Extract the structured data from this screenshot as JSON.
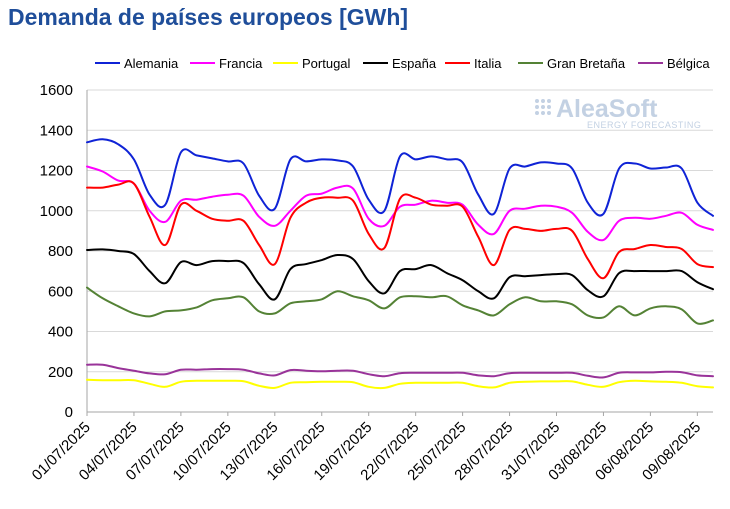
{
  "chart_data": {
    "type": "line",
    "title": "Demanda de países europeos [GWh]",
    "xlabel": "",
    "ylabel": "",
    "ylim": [
      0,
      1600
    ],
    "yticks": [
      0,
      200,
      400,
      600,
      800,
      1000,
      1200,
      1400,
      1600
    ],
    "grid": true,
    "legend_position": "top",
    "x": [
      "01/07/2025",
      "02/07/2025",
      "03/07/2025",
      "04/07/2025",
      "05/07/2025",
      "06/07/2025",
      "07/07/2025",
      "08/07/2025",
      "09/07/2025",
      "10/07/2025",
      "11/07/2025",
      "12/07/2025",
      "13/07/2025",
      "14/07/2025",
      "15/07/2025",
      "16/07/2025",
      "17/07/2025",
      "18/07/2025",
      "19/07/2025",
      "20/07/2025",
      "21/07/2025",
      "22/07/2025",
      "23/07/2025",
      "24/07/2025",
      "25/07/2025",
      "26/07/2025",
      "27/07/2025",
      "28/07/2025",
      "29/07/2025",
      "30/07/2025",
      "31/07/2025",
      "01/08/2025",
      "02/08/2025",
      "03/08/2025",
      "04/08/2025",
      "05/08/2025",
      "06/08/2025",
      "07/08/2025",
      "08/08/2025",
      "09/08/2025",
      "10/08/2025"
    ],
    "xtick_labels": [
      "01/07/2025",
      "04/07/2025",
      "07/07/2025",
      "10/07/2025",
      "13/07/2025",
      "16/07/2025",
      "19/07/2025",
      "22/07/2025",
      "25/07/2025",
      "28/07/2025",
      "31/07/2025",
      "03/08/2025",
      "06/08/2025",
      "09/08/2025"
    ],
    "series": [
      {
        "name": "Alemania",
        "color": "#0f23d6",
        "values": [
          1340,
          1355,
          1330,
          1255,
          1080,
          1030,
          1290,
          1275,
          1260,
          1245,
          1235,
          1075,
          1010,
          1255,
          1245,
          1255,
          1250,
          1220,
          1055,
          1000,
          1270,
          1255,
          1270,
          1255,
          1240,
          1080,
          985,
          1210,
          1220,
          1240,
          1235,
          1210,
          1040,
          985,
          1210,
          1235,
          1210,
          1215,
          1210,
          1040,
          975
        ]
      },
      {
        "name": "Francia",
        "color": "#ff00ff",
        "values": [
          1220,
          1195,
          1150,
          1135,
          1000,
          945,
          1050,
          1055,
          1070,
          1080,
          1075,
          970,
          925,
          1000,
          1075,
          1085,
          1115,
          1110,
          960,
          925,
          1020,
          1030,
          1050,
          1040,
          1030,
          930,
          885,
          1000,
          1010,
          1025,
          1020,
          990,
          895,
          855,
          950,
          965,
          960,
          975,
          990,
          930,
          905
        ]
      },
      {
        "name": "Portugal",
        "color": "#ffff00",
        "values": [
          160,
          158,
          158,
          158,
          140,
          125,
          150,
          155,
          155,
          155,
          153,
          130,
          120,
          145,
          148,
          150,
          150,
          148,
          125,
          120,
          140,
          145,
          145,
          145,
          145,
          128,
          122,
          145,
          150,
          152,
          152,
          152,
          135,
          125,
          148,
          155,
          152,
          150,
          145,
          128,
          122
        ]
      },
      {
        "name": "España",
        "color": "#000000",
        "values": [
          805,
          808,
          800,
          785,
          700,
          640,
          745,
          730,
          750,
          750,
          740,
          635,
          560,
          710,
          735,
          755,
          780,
          760,
          650,
          590,
          700,
          710,
          730,
          690,
          655,
          600,
          565,
          670,
          675,
          680,
          685,
          680,
          605,
          575,
          690,
          700,
          700,
          700,
          700,
          645,
          610
        ]
      },
      {
        "name": "Italia",
        "color": "#ff0000",
        "values": [
          1115,
          1115,
          1130,
          1135,
          970,
          830,
          1030,
          1000,
          960,
          950,
          950,
          830,
          735,
          965,
          1040,
          1065,
          1065,
          1050,
          885,
          815,
          1060,
          1065,
          1030,
          1025,
          1020,
          870,
          730,
          905,
          910,
          900,
          910,
          900,
          760,
          665,
          795,
          810,
          830,
          820,
          810,
          735,
          720
        ]
      },
      {
        "name": "Gran Bretaña",
        "color": "#548235",
        "values": [
          618,
          565,
          525,
          490,
          475,
          500,
          505,
          520,
          555,
          565,
          570,
          500,
          490,
          540,
          550,
          560,
          600,
          575,
          555,
          515,
          570,
          575,
          570,
          575,
          530,
          505,
          480,
          535,
          570,
          550,
          550,
          535,
          480,
          470,
          525,
          480,
          515,
          525,
          510,
          440,
          455
        ]
      },
      {
        "name": "Bélgica",
        "color": "#993399",
        "values": [
          235,
          235,
          218,
          205,
          192,
          188,
          210,
          210,
          213,
          213,
          210,
          192,
          182,
          208,
          205,
          202,
          205,
          205,
          188,
          178,
          193,
          195,
          195,
          195,
          195,
          182,
          178,
          193,
          195,
          195,
          195,
          195,
          180,
          172,
          195,
          197,
          197,
          200,
          198,
          182,
          178
        ]
      }
    ]
  },
  "logo": {
    "name": "AleaSoft",
    "tagline": "ENERGY FORECASTING"
  }
}
